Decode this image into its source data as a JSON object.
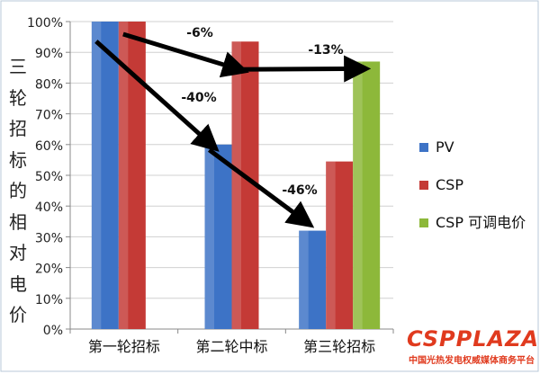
{
  "chart_data": {
    "type": "bar",
    "title": "",
    "xlabel": "",
    "ylabel": "三轮招标的相对电价",
    "ylim": [
      0,
      100
    ],
    "yticks": [
      "0%",
      "10%",
      "20%",
      "30%",
      "40%",
      "50%",
      "60%",
      "70%",
      "80%",
      "90%",
      "100%"
    ],
    "categories": [
      "第一轮招标",
      "第二轮中标",
      "第三轮招标"
    ],
    "series": [
      {
        "name": "PV",
        "values": [
          100,
          60,
          32
        ],
        "color": "#3d73c6"
      },
      {
        "name": "CSP",
        "values": [
          100,
          93.5,
          54.5
        ],
        "color": "#c43a36"
      },
      {
        "name": "CSP 可调电价",
        "values": [
          null,
          null,
          87
        ],
        "color": "#8db83a"
      }
    ],
    "annotations": [
      "-6%",
      "-13%",
      "-40%",
      "-46%"
    ],
    "grid": true,
    "legend_position": "right"
  },
  "watermark": {
    "logo": "CSPPLAZA",
    "subtitle": "中国光热发电权威媒体商务平台"
  }
}
